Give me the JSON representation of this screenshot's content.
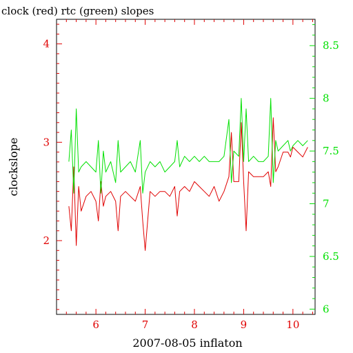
{
  "chart_data": {
    "type": "line",
    "title": "clock (red) rtc (green) slopes",
    "xlabel": "2007-08-05 inflaton",
    "ylabel": "clockslope",
    "xlim": [
      5.2,
      10.45
    ],
    "ylim_left": [
      1.25,
      4.25
    ],
    "ylim_right": [
      5.95,
      8.75
    ],
    "x_ticks": [
      "6",
      "7",
      "8",
      "9",
      "10"
    ],
    "y_ticks_left": [
      "2",
      "3",
      "4"
    ],
    "y_ticks_right": [
      "6",
      "6.5",
      "7",
      "7.5",
      "8",
      "8.5"
    ],
    "grid": false,
    "colors": {
      "clock": "#e00000",
      "rtc": "#00e000",
      "axis": "#000000"
    },
    "series": [
      {
        "axis": "left",
        "color": "#e00000",
        "x": [
          5.45,
          5.5,
          5.55,
          5.6,
          5.65,
          5.7,
          5.8,
          5.9,
          6.0,
          6.05,
          6.1,
          6.15,
          6.2,
          6.3,
          6.4,
          6.45,
          6.5,
          6.6,
          6.7,
          6.8,
          6.9,
          6.95,
          7.0,
          7.1,
          7.2,
          7.3,
          7.4,
          7.5,
          7.6,
          7.65,
          7.7,
          7.8,
          7.9,
          8.0,
          8.1,
          8.2,
          8.3,
          8.4,
          8.5,
          8.6,
          8.7,
          8.75,
          8.8,
          8.9,
          8.95,
          9.0,
          9.05,
          9.1,
          9.2,
          9.3,
          9.4,
          9.5,
          9.55,
          9.6,
          9.65,
          9.7,
          9.8,
          9.9,
          9.95,
          10.0,
          10.1,
          10.2,
          10.3
        ],
        "values": [
          2.35,
          2.1,
          2.75,
          1.95,
          2.55,
          2.3,
          2.45,
          2.5,
          2.4,
          2.2,
          2.6,
          2.35,
          2.45,
          2.5,
          2.4,
          2.1,
          2.45,
          2.5,
          2.45,
          2.4,
          2.55,
          2.2,
          1.9,
          2.5,
          2.45,
          2.5,
          2.5,
          2.45,
          2.55,
          2.25,
          2.5,
          2.55,
          2.5,
          2.6,
          2.55,
          2.5,
          2.45,
          2.55,
          2.4,
          2.5,
          2.65,
          3.1,
          2.6,
          2.6,
          3.2,
          2.6,
          2.1,
          2.7,
          2.65,
          2.65,
          2.65,
          2.7,
          2.55,
          3.25,
          2.7,
          2.75,
          2.9,
          2.9,
          2.85,
          2.95,
          2.9,
          2.85,
          2.95
        ]
      },
      {
        "axis": "right",
        "color": "#00e000",
        "x": [
          5.45,
          5.5,
          5.55,
          5.6,
          5.65,
          5.7,
          5.8,
          5.9,
          6.0,
          6.05,
          6.1,
          6.15,
          6.2,
          6.3,
          6.4,
          6.45,
          6.5,
          6.6,
          6.7,
          6.8,
          6.9,
          6.95,
          7.0,
          7.1,
          7.2,
          7.3,
          7.4,
          7.5,
          7.6,
          7.65,
          7.7,
          7.8,
          7.9,
          8.0,
          8.1,
          8.2,
          8.3,
          8.4,
          8.5,
          8.6,
          8.7,
          8.75,
          8.8,
          8.9,
          8.95,
          9.0,
          9.05,
          9.1,
          9.2,
          9.3,
          9.4,
          9.5,
          9.55,
          9.6,
          9.65,
          9.7,
          9.8,
          9.9,
          9.95,
          10.0,
          10.1,
          10.2,
          10.3
        ],
        "values": [
          7.4,
          7.7,
          7.1,
          7.9,
          7.3,
          7.35,
          7.4,
          7.35,
          7.3,
          7.6,
          7.1,
          7.5,
          7.3,
          7.4,
          7.2,
          7.6,
          7.3,
          7.35,
          7.4,
          7.3,
          7.6,
          7.1,
          7.3,
          7.4,
          7.35,
          7.4,
          7.3,
          7.35,
          7.4,
          7.6,
          7.35,
          7.45,
          7.4,
          7.45,
          7.4,
          7.45,
          7.4,
          7.4,
          7.4,
          7.45,
          7.8,
          7.2,
          7.5,
          7.45,
          8.0,
          7.4,
          7.9,
          7.4,
          7.45,
          7.4,
          7.4,
          7.45,
          8.0,
          7.2,
          7.6,
          7.5,
          7.55,
          7.6,
          7.5,
          7.55,
          7.6,
          7.55,
          7.6
        ]
      }
    ]
  }
}
